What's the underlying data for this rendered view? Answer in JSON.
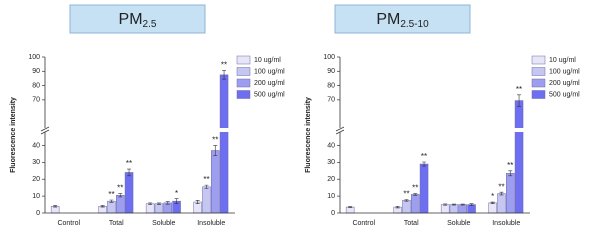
{
  "chart_data": [
    {
      "type": "bar",
      "title": "PM",
      "title_subscript": "2.5",
      "ylabel": "Fluorescence intensity",
      "categories": [
        "Control",
        "Total",
        "Soluble",
        "Insoluble"
      ],
      "ylim": [
        0,
        100
      ],
      "ybreak": [
        45,
        65
      ],
      "yticks": [
        0,
        10,
        20,
        30,
        40,
        70,
        80,
        90,
        100
      ],
      "series": [
        {
          "name": "10 ug/ml",
          "color": "#e6e6f8",
          "values": [
            4,
            4,
            5.5,
            6.5
          ],
          "errors": [
            0.5,
            0.5,
            0.5,
            1
          ],
          "annotations": [
            null,
            null,
            null,
            null
          ]
        },
        {
          "name": "100 ug/ml",
          "color": "#c6c6f2",
          "values": [
            null,
            7,
            5.5,
            15.5
          ],
          "errors": [
            null,
            0.7,
            0.5,
            1
          ],
          "annotations": [
            null,
            "**",
            null,
            "**"
          ]
        },
        {
          "name": "200 ug/ml",
          "color": "#9e9ef0",
          "values": [
            null,
            10.5,
            6,
            37
          ],
          "errors": [
            null,
            1,
            0.8,
            3
          ],
          "annotations": [
            null,
            "**",
            null,
            "**"
          ]
        },
        {
          "name": "500 ug/ml",
          "color": "#6e6ef0",
          "values": [
            null,
            24,
            7,
            87.5
          ],
          "errors": [
            null,
            2,
            1.5,
            3
          ],
          "annotations": [
            null,
            "**",
            "*",
            "**"
          ]
        }
      ]
    },
    {
      "type": "bar",
      "title": "PM",
      "title_subscript": "2.5-10",
      "ylabel": "Fluorescence intensity",
      "categories": [
        "Control",
        "Total",
        "Soluble",
        "Insoluble"
      ],
      "ylim": [
        0,
        100
      ],
      "ybreak": [
        45,
        65
      ],
      "yticks": [
        0,
        10,
        20,
        30,
        40,
        70,
        80,
        90,
        100
      ],
      "series": [
        {
          "name": "10 ug/ml",
          "color": "#e6e6f8",
          "values": [
            3.5,
            3.5,
            5,
            6
          ],
          "errors": [
            0.3,
            0.5,
            0.4,
            0.5
          ],
          "annotations": [
            null,
            null,
            null,
            "*"
          ]
        },
        {
          "name": "100 ug/ml",
          "color": "#c6c6f2",
          "values": [
            null,
            7.5,
            5,
            11.5
          ],
          "errors": [
            null,
            0.5,
            0.3,
            0.8
          ],
          "annotations": [
            null,
            "**",
            null,
            "**"
          ]
        },
        {
          "name": "200 ug/ml",
          "color": "#9e9ef0",
          "values": [
            null,
            11,
            5,
            23.5
          ],
          "errors": [
            null,
            0.5,
            0.3,
            1.5
          ],
          "annotations": [
            null,
            "**",
            null,
            "**"
          ]
        },
        {
          "name": "500 ug/ml",
          "color": "#6e6ef0",
          "values": [
            null,
            29,
            5,
            69.5
          ],
          "errors": [
            null,
            1.2,
            0.5,
            4
          ],
          "annotations": [
            null,
            "**",
            null,
            "**"
          ]
        }
      ]
    }
  ]
}
